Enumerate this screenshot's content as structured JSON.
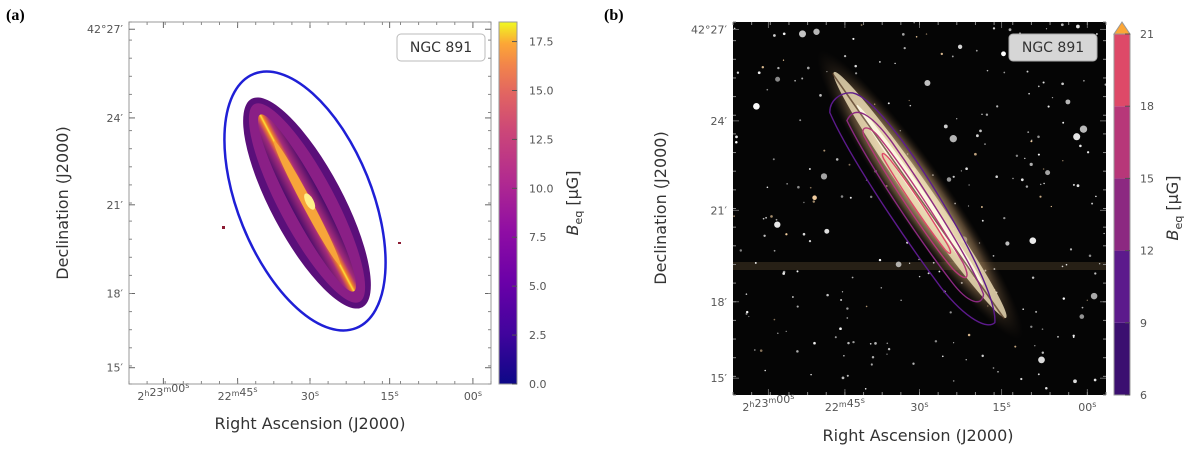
{
  "chart_data": [
    {
      "panel": "(a)",
      "type": "heatmap",
      "object_label": "NGC 891",
      "xlabel": "Right Ascension (J2000)",
      "ylabel": "Declination (J2000)",
      "x_ticks": [
        "2h23m00s",
        "22m45s",
        "30s",
        "15s",
        "00s"
      ],
      "y_ticks": [
        "42°27′",
        "24′",
        "21′",
        "18′",
        "15′"
      ],
      "colorbar": {
        "label": "Beq [μG]",
        "colormap": "plasma",
        "range": [
          0,
          18.5
        ],
        "ticks": [
          "0.0",
          "2.5",
          "5.0",
          "7.5",
          "10.0",
          "12.5",
          "15.0",
          "17.5"
        ]
      },
      "ellipse_color": "#1f1fd6"
    },
    {
      "panel": "(b)",
      "type": "heatmap",
      "object_label": "NGC 891",
      "xlabel": "Right Ascension (J2000)",
      "ylabel": "Declination (J2000)",
      "x_ticks": [
        "2h23m00s",
        "22m45s",
        "30s",
        "15s",
        "00s"
      ],
      "y_ticks": [
        "42°27′",
        "24′",
        "21′",
        "18′",
        "15′"
      ],
      "colorbar": {
        "label": "Beq [μG]",
        "colormap": "plasma-discrete",
        "range": [
          6,
          21
        ],
        "extend": "max",
        "ticks": [
          "6",
          "9",
          "12",
          "15",
          "18",
          "21"
        ],
        "levels": [
          6,
          9,
          12,
          15,
          18,
          21
        ],
        "level_colors": [
          "#3b0f70",
          "#5c1a8c",
          "#8c2981",
          "#b73779",
          "#de4968",
          "#f1713f"
        ]
      },
      "contour_levels": [
        9,
        12,
        15,
        18
      ]
    }
  ]
}
